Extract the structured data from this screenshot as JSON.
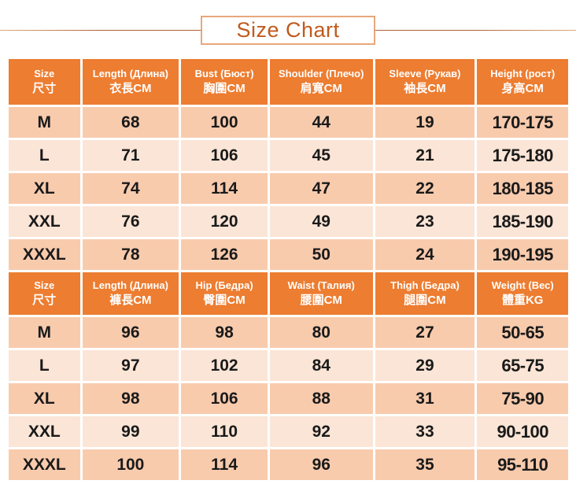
{
  "page_title": "Size Chart",
  "colors": {
    "header_bg": "#ED7D31",
    "row_dark": "#F8CBAD",
    "row_light": "#FBE5D6",
    "title_text": "#C05A1E",
    "title_box_border": "#E8A77B",
    "rule_line": "#B06034",
    "cell_text": "#1A1A1A",
    "header_text": "#FFFFFF",
    "divider": "#FFFFFF"
  },
  "chart_data": [
    {
      "type": "table",
      "columns": [
        {
          "en": "Size",
          "cn": "尺寸"
        },
        {
          "en": "Length (Длина)",
          "cn": "衣長CM"
        },
        {
          "en": "Bust (Бюст)",
          "cn": "胸圍CM"
        },
        {
          "en": "Shoulder (Плечо)",
          "cn": "肩寬CM"
        },
        {
          "en": "Sleeve (Рукав)",
          "cn": "袖長CM"
        },
        {
          "en": "Height (рост)",
          "cn": "身高CM"
        }
      ],
      "rows": [
        [
          "M",
          "68",
          "100",
          "44",
          "19",
          "170-175"
        ],
        [
          "L",
          "71",
          "106",
          "45",
          "21",
          "175-180"
        ],
        [
          "XL",
          "74",
          "114",
          "47",
          "22",
          "180-185"
        ],
        [
          "XXL",
          "76",
          "120",
          "49",
          "23",
          "185-190"
        ],
        [
          "XXXL",
          "78",
          "126",
          "50",
          "24",
          "190-195"
        ]
      ]
    },
    {
      "type": "table",
      "columns": [
        {
          "en": "Size",
          "cn": "尺寸"
        },
        {
          "en": "Length (Длина)",
          "cn": "褲長CM"
        },
        {
          "en": "Hip (Бедра)",
          "cn": "臀圍CM"
        },
        {
          "en": "Waist (Талия)",
          "cn": "腰圍CM"
        },
        {
          "en": "Thigh (Бедра)",
          "cn": "腿圍CM"
        },
        {
          "en": "Weight (Вес)",
          "cn": "體重KG"
        }
      ],
      "rows": [
        [
          "M",
          "96",
          "98",
          "80",
          "27",
          "50-65"
        ],
        [
          "L",
          "97",
          "102",
          "84",
          "29",
          "65-75"
        ],
        [
          "XL",
          "98",
          "106",
          "88",
          "31",
          "75-90"
        ],
        [
          "XXL",
          "99",
          "110",
          "92",
          "33",
          "90-100"
        ],
        [
          "XXXL",
          "100",
          "114",
          "96",
          "35",
          "95-110"
        ]
      ]
    }
  ]
}
